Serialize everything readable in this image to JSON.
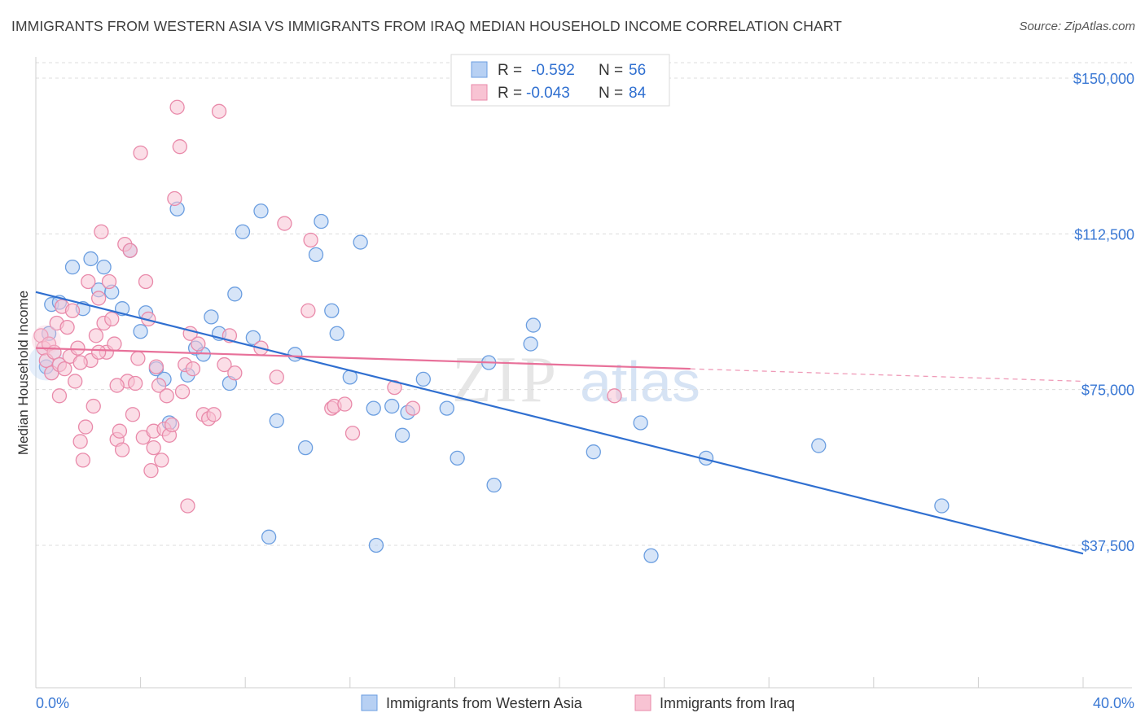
{
  "header": {
    "title": "IMMIGRANTS FROM WESTERN ASIA VS IMMIGRANTS FROM IRAQ MEDIAN HOUSEHOLD INCOME CORRELATION CHART",
    "source": "Source: ZipAtlas.com"
  },
  "watermark": {
    "zip": "ZIP",
    "atlas": "atlas"
  },
  "stats_box": {
    "rows": [
      {
        "r_label": "R =",
        "r_value": "-0.592",
        "n_label": "N =",
        "n_value": "56"
      },
      {
        "r_label": "R =",
        "r_value": "-0.043",
        "n_label": "N =",
        "n_value": "84"
      }
    ]
  },
  "chart_data": {
    "type": "scatter",
    "title": "IMMIGRANTS FROM WESTERN ASIA VS IMMIGRANTS FROM IRAQ MEDIAN HOUSEHOLD INCOME CORRELATION CHART",
    "xlabel": "",
    "ylabel": "Median Household Income",
    "xlim": [
      0,
      40
    ],
    "ylim": [
      0,
      155000
    ],
    "x_tick_labels": [
      "0.0%",
      "40.0%"
    ],
    "y_ticks": [
      37500,
      75000,
      112500,
      150000
    ],
    "y_tick_labels": [
      "$37,500",
      "$75,000",
      "$112,500",
      "$150,000"
    ],
    "grid": "horizontal dashed",
    "legend_position": "bottom",
    "colors": {
      "western_asia_fill": "#b7d0f3",
      "western_asia_stroke": "#6b9ee0",
      "western_asia_line": "#2f6fd0",
      "iraq_fill": "#f8c3d3",
      "iraq_stroke": "#e98aaa",
      "iraq_line": "#e8719a"
    },
    "series": [
      {
        "name": "Immigrants from Western Asia",
        "key": "western_asia",
        "stats": {
          "R": -0.592,
          "N": 56
        },
        "trend": {
          "x0": 0,
          "y0": 98500,
          "x1": 40,
          "y1": 35500
        },
        "points": [
          [
            0.4,
            80500
          ],
          [
            0.5,
            88500
          ],
          [
            0.6,
            95500
          ],
          [
            0.9,
            96000
          ],
          [
            1.4,
            104500
          ],
          [
            1.8,
            94500
          ],
          [
            2.1,
            106500
          ],
          [
            2.4,
            99000
          ],
          [
            2.6,
            104500
          ],
          [
            2.9,
            98500
          ],
          [
            3.3,
            94500
          ],
          [
            3.6,
            108500
          ],
          [
            4.0,
            89000
          ],
          [
            4.2,
            93500
          ],
          [
            4.6,
            80000
          ],
          [
            4.9,
            77500
          ],
          [
            5.1,
            67000
          ],
          [
            5.4,
            118500
          ],
          [
            5.8,
            78500
          ],
          [
            6.1,
            85000
          ],
          [
            6.4,
            83500
          ],
          [
            6.7,
            92500
          ],
          [
            7.0,
            88500
          ],
          [
            7.4,
            76500
          ],
          [
            7.6,
            98000
          ],
          [
            7.9,
            113000
          ],
          [
            8.3,
            87500
          ],
          [
            8.6,
            118000
          ],
          [
            8.9,
            39500
          ],
          [
            9.2,
            67500
          ],
          [
            9.9,
            83500
          ],
          [
            10.3,
            61000
          ],
          [
            10.7,
            107500
          ],
          [
            10.9,
            115500
          ],
          [
            11.3,
            94000
          ],
          [
            11.5,
            88500
          ],
          [
            12.0,
            78000
          ],
          [
            12.4,
            110500
          ],
          [
            12.9,
            70500
          ],
          [
            13.0,
            37500
          ],
          [
            13.6,
            71000
          ],
          [
            14.0,
            64000
          ],
          [
            14.2,
            69500
          ],
          [
            14.8,
            77500
          ],
          [
            15.7,
            70500
          ],
          [
            16.1,
            58500
          ],
          [
            17.3,
            81500
          ],
          [
            17.5,
            52000
          ],
          [
            18.9,
            86000
          ],
          [
            19.0,
            90500
          ],
          [
            21.3,
            60000
          ],
          [
            23.1,
            67000
          ],
          [
            23.5,
            35000
          ],
          [
            25.6,
            58500
          ],
          [
            29.9,
            61500
          ],
          [
            34.6,
            47000
          ]
        ]
      },
      {
        "name": "Immigrants from Iraq",
        "key": "iraq",
        "stats": {
          "R": -0.043,
          "N": 84
        },
        "trend": {
          "x0": 0,
          "y0": 85000,
          "x1": 25,
          "y1": 80000
        },
        "trend_extension": {
          "x0": 25,
          "y0": 80000,
          "x1": 40,
          "y1": 77000
        },
        "points": [
          [
            0.2,
            88000
          ],
          [
            0.3,
            85000
          ],
          [
            0.4,
            82000
          ],
          [
            0.5,
            86000
          ],
          [
            0.6,
            79000
          ],
          [
            0.7,
            84000
          ],
          [
            0.8,
            91000
          ],
          [
            0.9,
            81000
          ],
          [
            1.0,
            95000
          ],
          [
            1.1,
            80000
          ],
          [
            1.2,
            90000
          ],
          [
            1.3,
            83000
          ],
          [
            1.4,
            94000
          ],
          [
            1.5,
            77000
          ],
          [
            1.6,
            85000
          ],
          [
            1.7,
            62500
          ],
          [
            1.8,
            58000
          ],
          [
            1.9,
            66000
          ],
          [
            2.0,
            101000
          ],
          [
            2.1,
            82000
          ],
          [
            2.2,
            71000
          ],
          [
            2.3,
            88000
          ],
          [
            2.4,
            97000
          ],
          [
            2.5,
            113000
          ],
          [
            2.6,
            91000
          ],
          [
            2.7,
            84000
          ],
          [
            2.8,
            101000
          ],
          [
            2.9,
            92000
          ],
          [
            3.0,
            86000
          ],
          [
            3.1,
            63000
          ],
          [
            3.2,
            65000
          ],
          [
            3.3,
            60500
          ],
          [
            3.4,
            110000
          ],
          [
            3.5,
            77000
          ],
          [
            3.6,
            108500
          ],
          [
            3.7,
            69000
          ],
          [
            3.8,
            76500
          ],
          [
            3.9,
            82500
          ],
          [
            4.0,
            132000
          ],
          [
            4.1,
            63500
          ],
          [
            4.2,
            101000
          ],
          [
            4.3,
            92000
          ],
          [
            4.4,
            55500
          ],
          [
            4.5,
            65000
          ],
          [
            4.6,
            80500
          ],
          [
            4.7,
            76000
          ],
          [
            4.8,
            58000
          ],
          [
            4.9,
            65500
          ],
          [
            5.0,
            73500
          ],
          [
            5.1,
            64000
          ],
          [
            5.2,
            66500
          ],
          [
            5.3,
            121000
          ],
          [
            5.4,
            143000
          ],
          [
            5.5,
            133500
          ],
          [
            5.6,
            74500
          ],
          [
            5.7,
            81000
          ],
          [
            5.8,
            47000
          ],
          [
            5.9,
            88500
          ],
          [
            6.0,
            80000
          ],
          [
            6.2,
            86000
          ],
          [
            6.4,
            69000
          ],
          [
            6.6,
            68000
          ],
          [
            6.8,
            69000
          ],
          [
            7.0,
            142000
          ],
          [
            7.2,
            81000
          ],
          [
            7.4,
            88000
          ],
          [
            7.6,
            79000
          ],
          [
            8.6,
            85000
          ],
          [
            9.2,
            78000
          ],
          [
            9.5,
            115000
          ],
          [
            10.4,
            94000
          ],
          [
            10.5,
            111000
          ],
          [
            11.3,
            70500
          ],
          [
            11.4,
            71000
          ],
          [
            11.8,
            71500
          ],
          [
            12.1,
            64500
          ],
          [
            13.7,
            75500
          ],
          [
            14.4,
            70500
          ],
          [
            22.1,
            73500
          ],
          [
            3.1,
            76000
          ],
          [
            1.7,
            81500
          ],
          [
            2.4,
            84000
          ],
          [
            0.9,
            73500
          ],
          [
            4.5,
            61000
          ]
        ]
      }
    ]
  },
  "axes": {
    "y_title": "Median Household Income",
    "x_left": "0.0%",
    "x_right": "40.0%"
  },
  "legend": {
    "items": [
      {
        "label": "Immigrants from Western Asia"
      },
      {
        "label": "Immigrants from Iraq"
      }
    ]
  }
}
